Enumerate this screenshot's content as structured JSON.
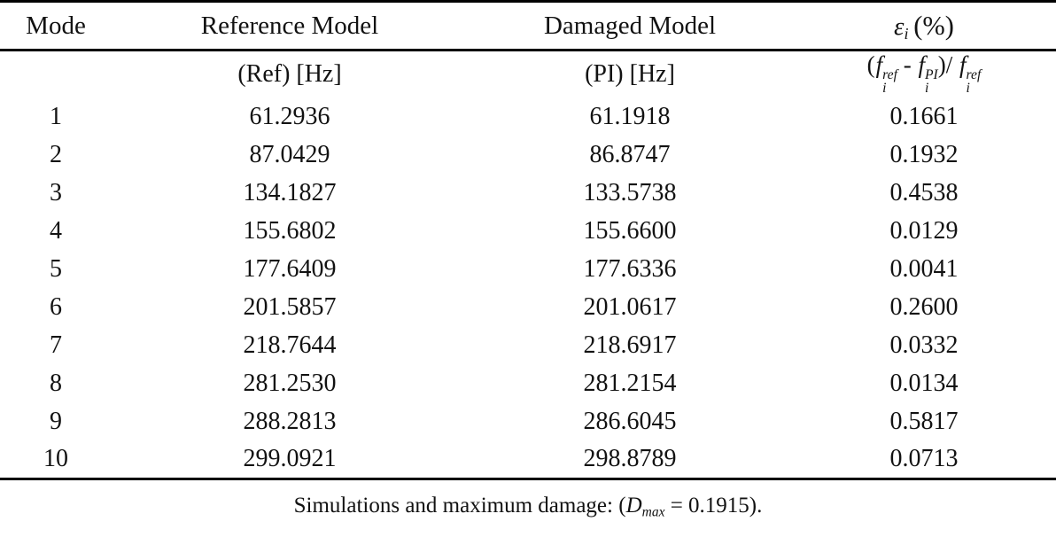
{
  "table": {
    "header": {
      "mode": "Mode",
      "reference": "Reference Model",
      "damaged": "Damaged Model",
      "epsilon": {
        "symbol": "ε",
        "subscript": "i",
        "unit": "(%)"
      }
    },
    "subheader": {
      "mode": "",
      "reference": "(Ref) [Hz]",
      "damaged": "(PI) [Hz]",
      "formula": {
        "open_paren": "(",
        "f1": {
          "base": "f",
          "sup": "ref",
          "sub": "i"
        },
        "minus": " - ",
        "f2": {
          "base": "f",
          "sup": "PI",
          "sub": "i"
        },
        "close_paren": ")/ ",
        "f3": {
          "base": "f",
          "sup": "ref",
          "sub": "i"
        }
      }
    },
    "rows": [
      {
        "mode": "1",
        "ref": "61.2936",
        "pi": "61.1918",
        "eps": "0.1661"
      },
      {
        "mode": "2",
        "ref": "87.0429",
        "pi": "86.8747",
        "eps": "0.1932"
      },
      {
        "mode": "3",
        "ref": "134.1827",
        "pi": "133.5738",
        "eps": "0.4538"
      },
      {
        "mode": "4",
        "ref": "155.6802",
        "pi": "155.6600",
        "eps": "0.0129"
      },
      {
        "mode": "5",
        "ref": "177.6409",
        "pi": "177.6336",
        "eps": "0.0041"
      },
      {
        "mode": "6",
        "ref": "201.5857",
        "pi": "201.0617",
        "eps": "0.2600"
      },
      {
        "mode": "7",
        "ref": "218.7644",
        "pi": "218.6917",
        "eps": "0.0332"
      },
      {
        "mode": "8",
        "ref": "281.2530",
        "pi": "281.2154",
        "eps": "0.0134"
      },
      {
        "mode": "9",
        "ref": "288.2813",
        "pi": "286.6045",
        "eps": "0.5817"
      },
      {
        "mode": "10",
        "ref": "299.0921",
        "pi": "298.8789",
        "eps": "0.0713"
      }
    ]
  },
  "caption": {
    "text_before": "Simulations and maximum damage: (",
    "d_symbol": "D",
    "d_subscript": "max",
    "text_after": " = 0.1915)."
  },
  "colors": {
    "background": "#ffffff",
    "text": "#121212",
    "rule": "#000000"
  }
}
